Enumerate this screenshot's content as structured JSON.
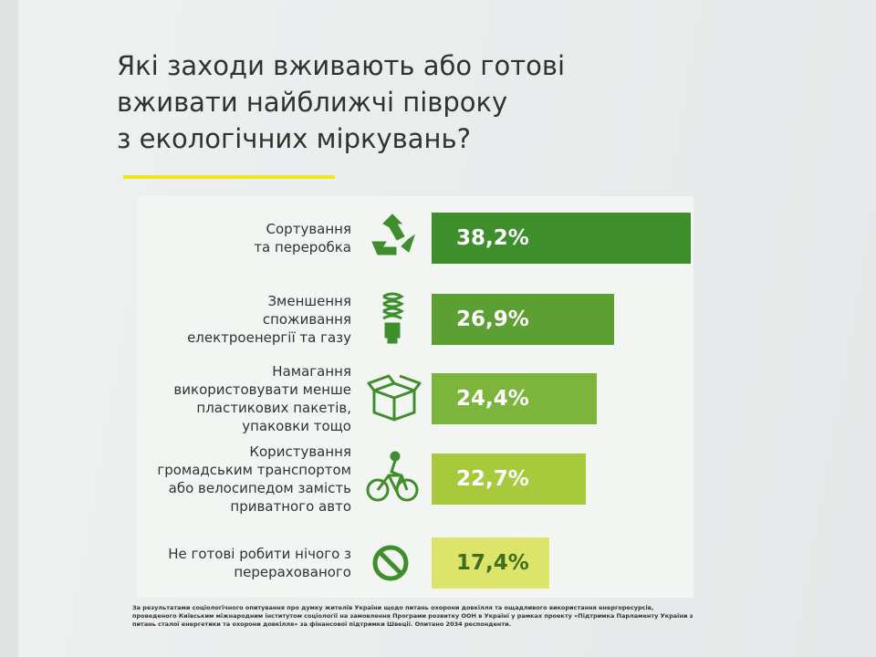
{
  "chart_data": {
    "type": "bar",
    "orientation": "horizontal",
    "title": "Які заходи вживають або готові\nвживати найближчі півроку\nз екологічних міркувань?",
    "categories": [
      "Сортування\nта переробка",
      "Зменшення\nспоживання\nелектроенергії та газу",
      "Намагання\nвикористовувати менше\nпластикових пакетів,\nупаковки тощо",
      "Користування\nгромадським транспортом\nабо велосипедом замість\nприватного авто",
      "Не готові робити нічого з\nперерахованого"
    ],
    "values": [
      38.2,
      26.9,
      24.4,
      22.7,
      17.4
    ],
    "value_labels": [
      "38,2%",
      "26,9%",
      "24,4%",
      "22,7%",
      "17,4%"
    ],
    "colors": [
      "#3e8e2b",
      "#5c9f33",
      "#7db43b",
      "#a8c93c",
      "#dde46a"
    ],
    "footnote": "За результатами соціологічного опитування про думку жителів України щодо питань охорони довкілля та ощадливого використання енергоресурсів, проведеного Київським міжнародним інститутом соціології на замовлення Програми розвитку ООН в Україні у рамках проекту «Підтримка Парламенту України з питань сталої енергетики та охорони довкілля» за фінансової підтримки Швеції. Опитано 2034 респонденти."
  }
}
